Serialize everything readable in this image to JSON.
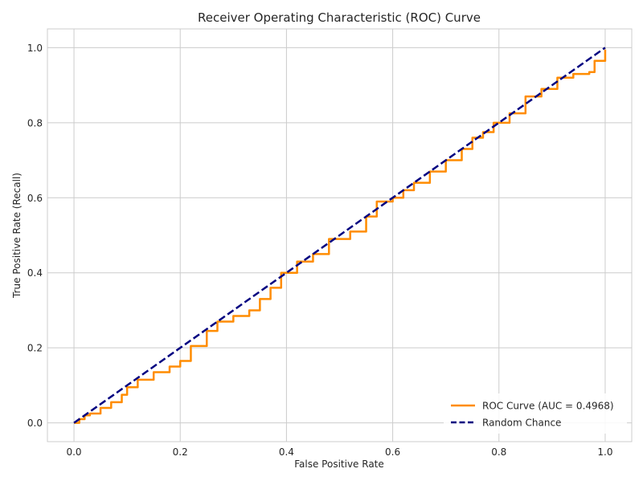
{
  "chart_data": {
    "type": "line",
    "title": "Receiver Operating Characteristic (ROC) Curve",
    "xlabel": "False Positive Rate",
    "ylabel": "True Positive Rate (Recall)",
    "xlim": [
      -0.05,
      1.05
    ],
    "ylim": [
      -0.05,
      1.05
    ],
    "xticks": [
      0.0,
      0.2,
      0.4,
      0.6,
      0.8,
      1.0
    ],
    "yticks": [
      0.0,
      0.2,
      0.4,
      0.6,
      0.8,
      1.0
    ],
    "xtick_labels": [
      "0.0",
      "0.2",
      "0.4",
      "0.6",
      "0.8",
      "1.0"
    ],
    "ytick_labels": [
      "0.0",
      "0.2",
      "0.4",
      "0.6",
      "0.8",
      "1.0"
    ],
    "grid": true,
    "legend_position": "lower-right",
    "series": [
      {
        "name": "ROC Curve (AUC = 0.4968)",
        "color": "#ff8c00",
        "style": "solid",
        "x": [
          0.0,
          0.01,
          0.02,
          0.03,
          0.05,
          0.07,
          0.09,
          0.1,
          0.12,
          0.15,
          0.18,
          0.2,
          0.22,
          0.25,
          0.27,
          0.3,
          0.33,
          0.35,
          0.37,
          0.39,
          0.42,
          0.45,
          0.48,
          0.52,
          0.55,
          0.57,
          0.6,
          0.62,
          0.64,
          0.67,
          0.7,
          0.73,
          0.75,
          0.77,
          0.79,
          0.82,
          0.85,
          0.88,
          0.91,
          0.94,
          0.97,
          0.98,
          1.0
        ],
        "y": [
          0.0,
          0.01,
          0.02,
          0.025,
          0.04,
          0.055,
          0.075,
          0.095,
          0.115,
          0.135,
          0.15,
          0.165,
          0.205,
          0.245,
          0.27,
          0.285,
          0.3,
          0.33,
          0.36,
          0.4,
          0.43,
          0.45,
          0.49,
          0.51,
          0.55,
          0.59,
          0.6,
          0.62,
          0.64,
          0.67,
          0.7,
          0.73,
          0.76,
          0.775,
          0.8,
          0.825,
          0.87,
          0.89,
          0.92,
          0.93,
          0.935,
          0.965,
          0.995
        ]
      },
      {
        "name": "Random Chance",
        "color": "#000080",
        "style": "dashed",
        "x": [
          0.0,
          1.0
        ],
        "y": [
          0.0,
          1.0
        ]
      }
    ]
  }
}
